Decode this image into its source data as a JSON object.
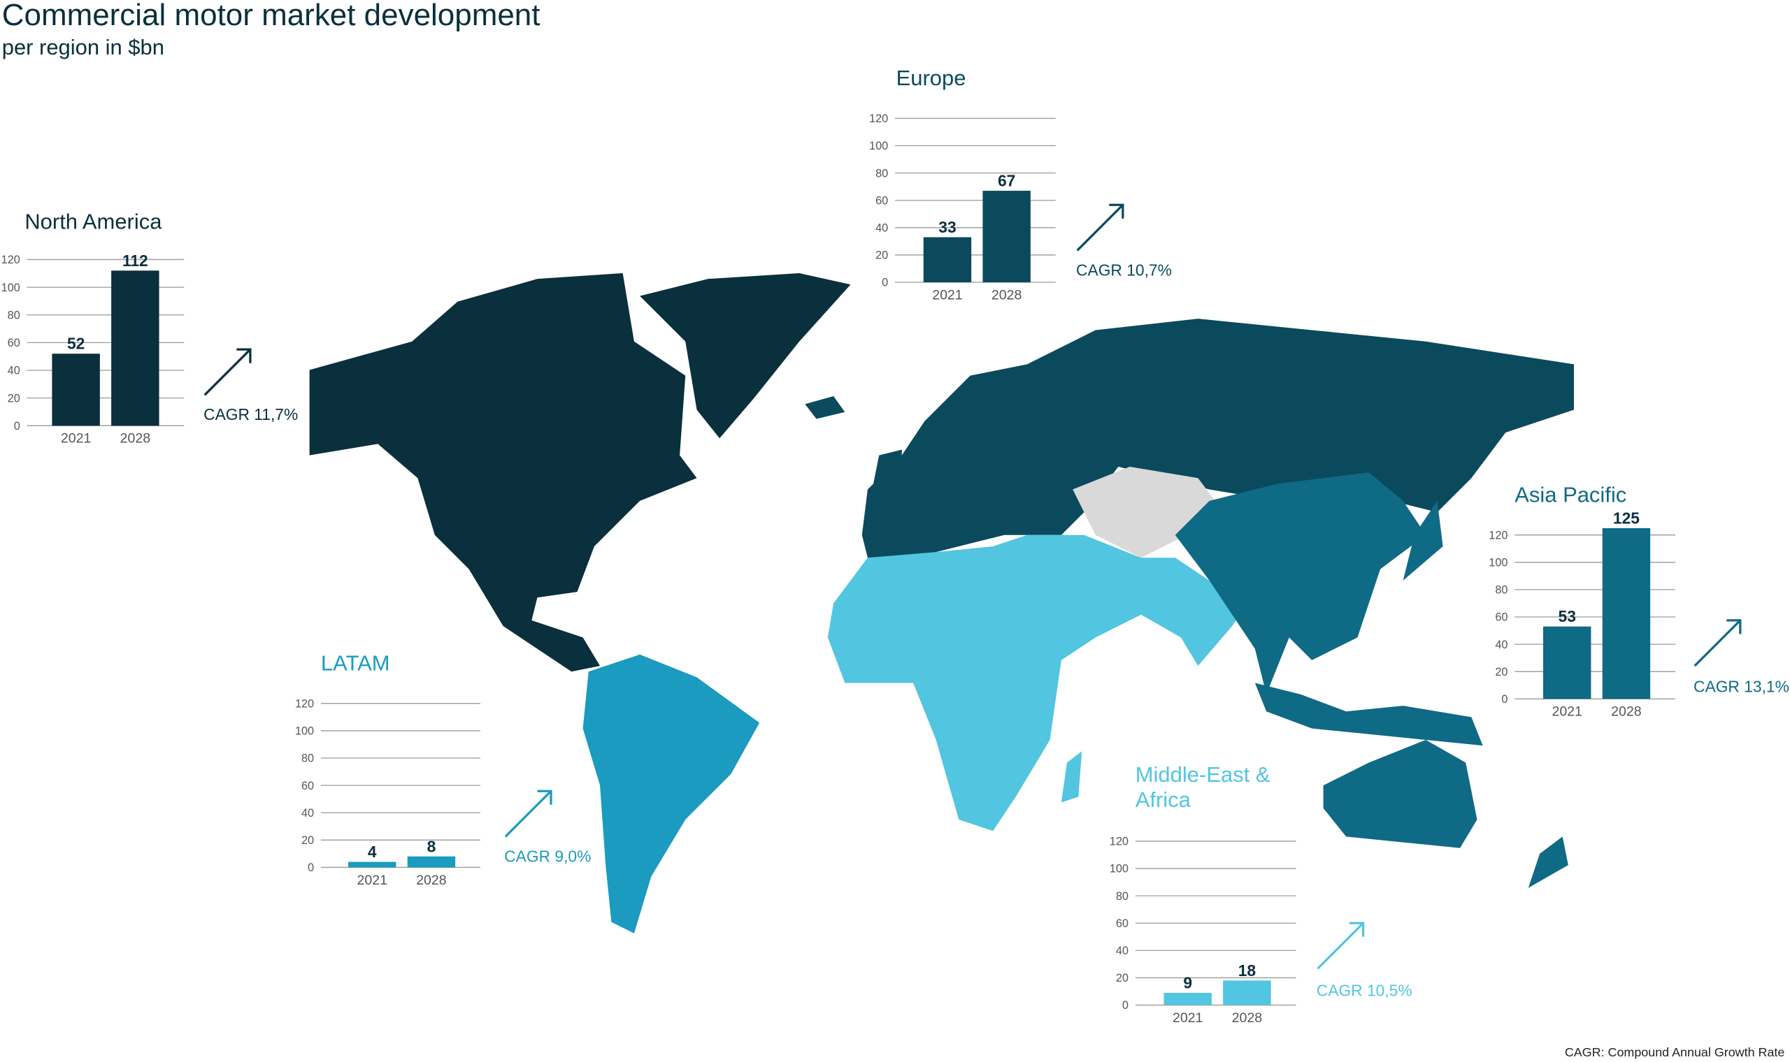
{
  "title": "Commercial motor market development",
  "subtitle": "per region in $bn",
  "footnote": "CAGR: Compound Annual Growth Rate",
  "chart_data": [
    {
      "type": "bar",
      "title": "North America",
      "categories": [
        "2021",
        "2028"
      ],
      "values": [
        52,
        112
      ],
      "color": "#0a2f3d",
      "ylim": [
        0,
        120
      ],
      "yticks": [
        0,
        20,
        40,
        60,
        80,
        100,
        120
      ],
      "grid": true,
      "annotation": "CAGR 11,7%"
    },
    {
      "type": "bar",
      "title": "Europe",
      "categories": [
        "2021",
        "2028"
      ],
      "values": [
        33,
        67
      ],
      "color": "#0a4a5c",
      "ylim": [
        0,
        120
      ],
      "yticks": [
        0,
        20,
        40,
        60,
        80,
        100,
        120
      ],
      "grid": true,
      "annotation": "CAGR 10,7%"
    },
    {
      "type": "bar",
      "title": "LATAM",
      "categories": [
        "2021",
        "2028"
      ],
      "values": [
        4,
        8
      ],
      "color": "#1a9bbf",
      "ylim": [
        0,
        120
      ],
      "yticks": [
        0,
        20,
        40,
        60,
        80,
        100,
        120
      ],
      "grid": true,
      "annotation": "CAGR 9,0%"
    },
    {
      "type": "bar",
      "title": "Middle-East & Africa",
      "categories": [
        "2021",
        "2028"
      ],
      "values": [
        9,
        18
      ],
      "color": "#52c5e0",
      "ylim": [
        0,
        120
      ],
      "yticks": [
        0,
        20,
        40,
        60,
        80,
        100,
        120
      ],
      "grid": true,
      "annotation": "CAGR 10,5%"
    },
    {
      "type": "bar",
      "title": "Asia Pacific",
      "categories": [
        "2021",
        "2028"
      ],
      "values": [
        53,
        125
      ],
      "color": "#0f6a85",
      "ylim": [
        0,
        120
      ],
      "yticks": [
        0,
        20,
        40,
        60,
        80,
        100,
        120
      ],
      "grid": true,
      "annotation": "CAGR 13,1%"
    }
  ]
}
